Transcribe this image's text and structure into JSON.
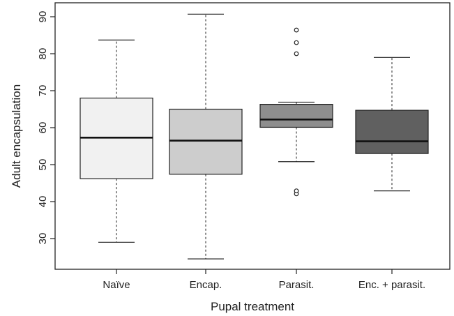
{
  "chart_data": {
    "type": "boxplot",
    "xlabel": "Pupal treatment",
    "ylabel": "Adult encapsulation",
    "ylim": [
      22,
      94
    ],
    "yticks": [
      30,
      40,
      50,
      60,
      70,
      80,
      90
    ],
    "grid": false,
    "legend": "none",
    "categories": [
      "Naïve",
      "Encap.",
      "Parasit.",
      "Enc. + parasit."
    ],
    "boxes": [
      {
        "category": "Naïve",
        "whisker_low": 29,
        "q1": 46.2,
        "median": 57.3,
        "q3": 68,
        "whisker_high": 83.7,
        "outliers": [],
        "color": "#f1f1f1"
      },
      {
        "category": "Encap.",
        "whisker_low": 24.5,
        "q1": 47.4,
        "median": 56.5,
        "q3": 65,
        "whisker_high": 90.7,
        "outliers": [],
        "color": "#cdcdcd"
      },
      {
        "category": "Parasit.",
        "whisker_low": 50.8,
        "q1": 60.1,
        "median": 62.2,
        "q3": 66.3,
        "whisker_high": 66.9,
        "outliers": [
          42.1,
          42.9,
          80,
          83,
          86.4
        ],
        "color": "#8e8e8e"
      },
      {
        "category": "Enc. + parasit.",
        "whisker_low": 42.9,
        "q1": 53,
        "median": 56.3,
        "q3": 64.7,
        "whisker_high": 79,
        "outliers": [],
        "color": "#606060"
      }
    ]
  }
}
